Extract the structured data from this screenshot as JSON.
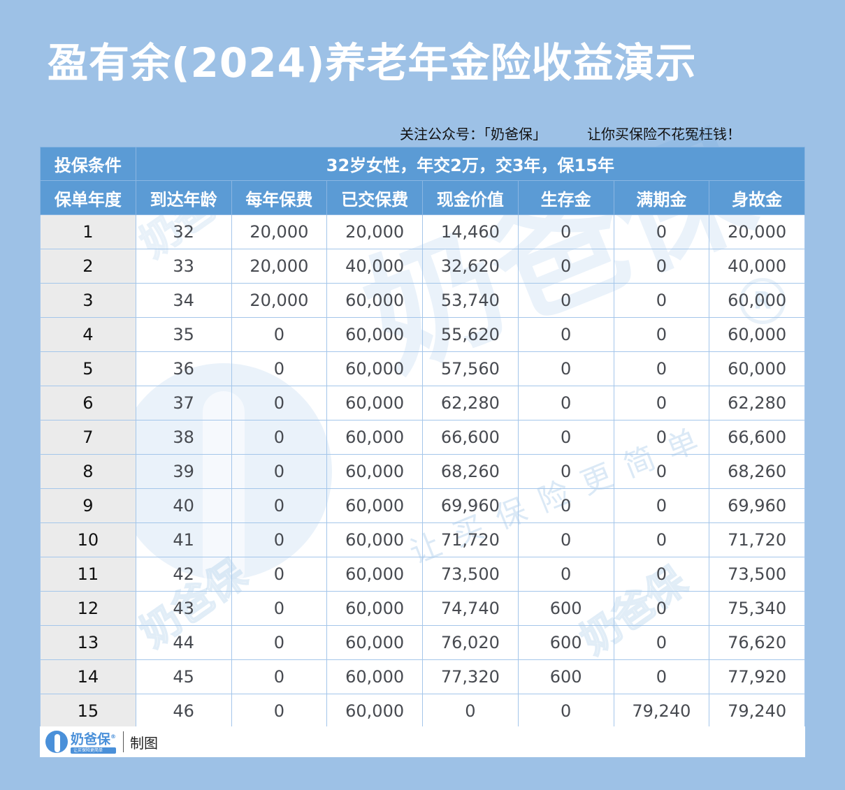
{
  "title": "盈有余(2024)养老年金险收益演示",
  "slogan": {
    "follow": "关注公众号：「奶爸保」",
    "tagline": "让你买保险不花冤枉钱！"
  },
  "conditions": {
    "label": "投保条件",
    "value": "32岁女性，年交2万，交3年，保15年"
  },
  "columns": [
    "保单年度",
    "到达年龄",
    "每年保费",
    "已交保费",
    "现金价值",
    "生存金",
    "满期金",
    "身故金"
  ],
  "rows": [
    [
      "1",
      "32",
      "20,000",
      "20,000",
      "14,460",
      "0",
      "0",
      "20,000"
    ],
    [
      "2",
      "33",
      "20,000",
      "40,000",
      "32,620",
      "0",
      "0",
      "40,000"
    ],
    [
      "3",
      "34",
      "20,000",
      "60,000",
      "53,740",
      "0",
      "0",
      "60,000"
    ],
    [
      "4",
      "35",
      "0",
      "60,000",
      "55,620",
      "0",
      "0",
      "60,000"
    ],
    [
      "5",
      "36",
      "0",
      "60,000",
      "57,560",
      "0",
      "0",
      "60,000"
    ],
    [
      "6",
      "37",
      "0",
      "60,000",
      "62,280",
      "0",
      "0",
      "62,280"
    ],
    [
      "7",
      "38",
      "0",
      "60,000",
      "66,600",
      "0",
      "0",
      "66,600"
    ],
    [
      "8",
      "39",
      "0",
      "60,000",
      "68,260",
      "0",
      "0",
      "68,260"
    ],
    [
      "9",
      "40",
      "0",
      "60,000",
      "69,960",
      "0",
      "0",
      "69,960"
    ],
    [
      "10",
      "41",
      "0",
      "60,000",
      "71,720",
      "0",
      "0",
      "71,720"
    ],
    [
      "11",
      "42",
      "0",
      "60,000",
      "73,500",
      "0",
      "0",
      "73,500"
    ],
    [
      "12",
      "43",
      "0",
      "60,000",
      "74,740",
      "600",
      "0",
      "75,340"
    ],
    [
      "13",
      "44",
      "0",
      "60,000",
      "76,020",
      "600",
      "0",
      "76,620"
    ],
    [
      "14",
      "45",
      "0",
      "60,000",
      "77,320",
      "600",
      "0",
      "77,920"
    ],
    [
      "15",
      "46",
      "0",
      "60,000",
      "0",
      "0",
      "79,240",
      "79,240"
    ]
  ],
  "footer": {
    "brand": "奶爸保",
    "registered": "®",
    "brand_tagline": "让买保险更简单",
    "made_by": "制图"
  },
  "watermark": {
    "brand": "奶爸保",
    "tagline": "让买保险更简单",
    "registered": "R"
  },
  "colors": {
    "page_bg": "#9dc1e6",
    "header_bg": "#5b9bd5",
    "year_col_bg": "#ebebeb",
    "grid_line": "#a4c6ea",
    "brand_blue": "#4a90d9"
  }
}
